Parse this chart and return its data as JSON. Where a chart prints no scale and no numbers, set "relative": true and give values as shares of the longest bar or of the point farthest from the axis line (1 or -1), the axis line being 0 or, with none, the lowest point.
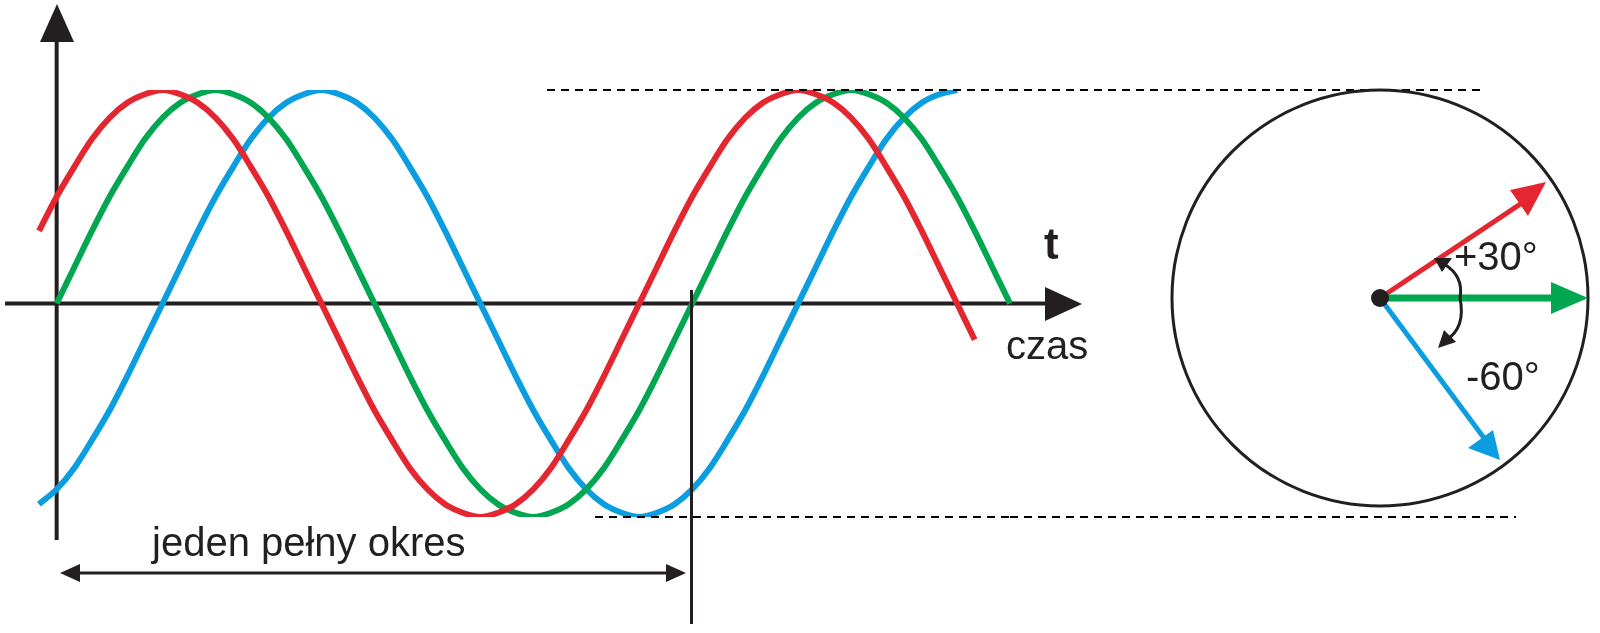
{
  "chart_data": {
    "type": "line",
    "relative": true,
    "grid": false,
    "legend": false,
    "marker": "none",
    "line_style": "solid",
    "categories": [
      null,
      null,
      null,
      null,
      null,
      null,
      null,
      null,
      null,
      null,
      null,
      null,
      null,
      null,
      null,
      null,
      null,
      null,
      null,
      null,
      null,
      null,
      null,
      null,
      null,
      null,
      null,
      null,
      null,
      null,
      null,
      null,
      null,
      null,
      null,
      null,
      null,
      null,
      null,
      null,
      null,
      null,
      null,
      null,
      null,
      null,
      null,
      null,
      null,
      null,
      null,
      null,
      null,
      null,
      null,
      null
    ],
    "series": [
      {
        "color": "#e3262f",
        "values": [
          0.34,
          0.5,
          0.64,
          0.77,
          0.87,
          0.94,
          0.98,
          1,
          0.98,
          0.94,
          0.87,
          0.77,
          0.64,
          0.5,
          0.34,
          0.17,
          0,
          -0.17,
          -0.34,
          -0.5,
          -0.64,
          -0.77,
          -0.87,
          -0.94,
          -0.98,
          -1,
          -0.98,
          -0.94,
          -0.87,
          -0.77,
          -0.64,
          -0.5,
          -0.34,
          -0.17,
          0,
          0.17,
          0.34,
          0.5,
          0.64,
          0.77,
          0.87,
          0.94,
          0.98,
          1,
          0.98,
          0.94,
          0.87,
          0.77,
          0.64,
          0.5,
          0.34,
          0.17,
          0,
          -0.17,
          null,
          null
        ]
      },
      {
        "color": "#00a650",
        "values": [
          null,
          0,
          0.17,
          0.34,
          0.5,
          0.64,
          0.77,
          0.87,
          0.94,
          0.98,
          1,
          0.98,
          0.94,
          0.87,
          0.77,
          0.64,
          0.5,
          0.34,
          0.17,
          0,
          -0.17,
          -0.34,
          -0.5,
          -0.64,
          -0.77,
          -0.87,
          -0.94,
          -0.98,
          -1,
          -0.98,
          -0.94,
          -0.87,
          -0.77,
          -0.64,
          -0.5,
          -0.34,
          -0.17,
          0,
          0.17,
          0.34,
          0.5,
          0.64,
          0.77,
          0.87,
          0.94,
          0.98,
          1,
          0.98,
          0.94,
          0.87,
          0.77,
          0.64,
          0.5,
          0.34,
          0.17,
          0
        ]
      },
      {
        "color": "#0a9ee0",
        "values": [
          -0.94,
          -0.87,
          -0.77,
          -0.64,
          -0.5,
          -0.34,
          -0.17,
          0,
          0.17,
          0.34,
          0.5,
          0.64,
          0.77,
          0.87,
          0.94,
          0.98,
          1,
          0.98,
          0.94,
          0.87,
          0.77,
          0.64,
          0.5,
          0.34,
          0.17,
          0,
          -0.17,
          -0.34,
          -0.5,
          -0.64,
          -0.77,
          -0.87,
          -0.94,
          -0.98,
          -1,
          -0.98,
          -0.94,
          -0.87,
          -0.77,
          -0.64,
          -0.5,
          -0.34,
          -0.17,
          0,
          0.17,
          0.34,
          0.5,
          0.64,
          0.77,
          0.87,
          0.94,
          0.98,
          1,
          null,
          null,
          null
        ]
      }
    ],
    "ref_lines": [
      {
        "axis": "y",
        "value": 1,
        "color": "#000000",
        "line_style": "dashed"
      },
      {
        "axis": "y",
        "value": -1,
        "color": "#000000",
        "line_style": "dashed"
      }
    ],
    "annotations": [
      "t",
      "czas",
      "jeden pełny okres",
      "+30°",
      "-60°"
    ]
  }
}
